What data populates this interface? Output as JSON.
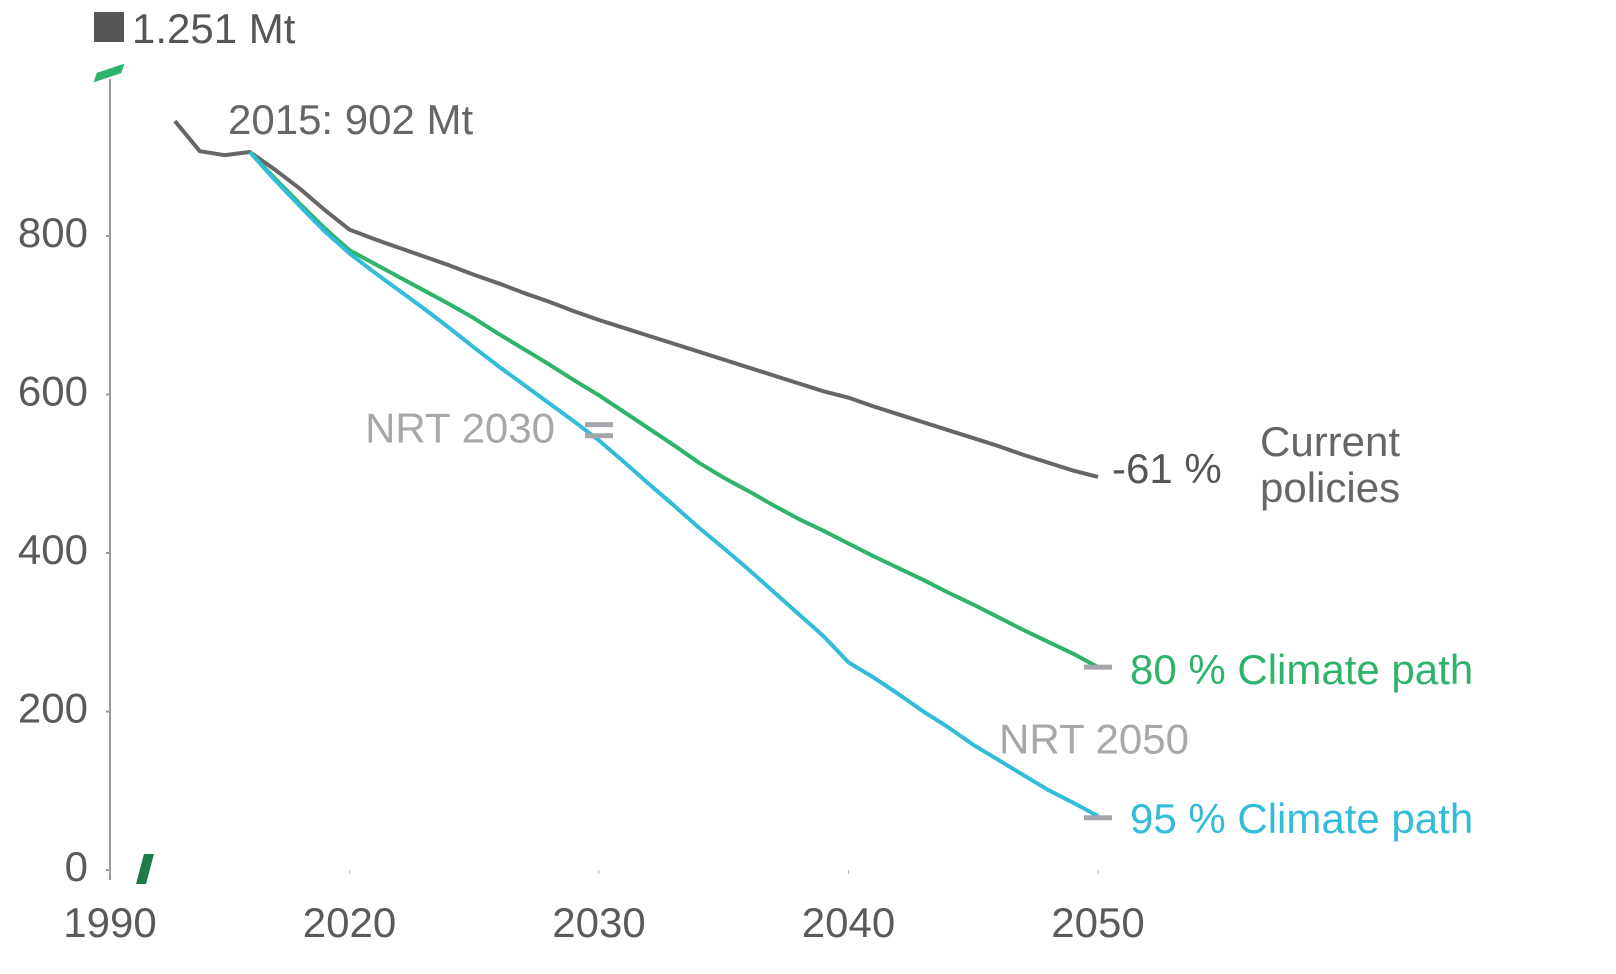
{
  "chart_data": {
    "type": "line",
    "x": [
      2013,
      2014,
      2015,
      2016,
      2017,
      2018,
      2019,
      2020,
      2021,
      2022,
      2023,
      2024,
      2025,
      2026,
      2027,
      2028,
      2029,
      2030,
      2031,
      2032,
      2033,
      2034,
      2035,
      2036,
      2037,
      2038,
      2039,
      2040,
      2041,
      2042,
      2043,
      2044,
      2045,
      2046,
      2047,
      2048,
      2049,
      2050
    ],
    "series": [
      {
        "name": "Current policies",
        "color": "#666666",
        "values": [
          945,
          907,
          902,
          906,
          884,
          860,
          833,
          808,
          796,
          785,
          774,
          763,
          751,
          740,
          728,
          717,
          705,
          694,
          684,
          674,
          664,
          654,
          644,
          634,
          624,
          614,
          604,
          596,
          585,
          575,
          565,
          555,
          545,
          535,
          524,
          514,
          504,
          496
        ]
      },
      {
        "name": "80 % Climate path",
        "color": "#2eb36a",
        "values": [
          null,
          null,
          null,
          906,
          873,
          841,
          810,
          782,
          765,
          748,
          731,
          714,
          696,
          676,
          657,
          638,
          618,
          599,
          578,
          557,
          536,
          514,
          495,
          478,
          460,
          443,
          428,
          412,
          396,
          381,
          366,
          350,
          335,
          319,
          303,
          288,
          273,
          256
        ]
      },
      {
        "name": "95 % Climate path",
        "color": "#33bcd9",
        "values": [
          null,
          null,
          null,
          906,
          871,
          838,
          806,
          778,
          754,
          731,
          708,
          684,
          659,
          635,
          612,
          589,
          566,
          542,
          515,
          487,
          460,
          432,
          406,
          379,
          351,
          323,
          295,
          262,
          243,
          222,
          200,
          180,
          158,
          139,
          120,
          101,
          85,
          68
        ]
      }
    ],
    "xlim": [
      2010.4,
      2050
    ],
    "xticks": [
      1990,
      2020,
      2030,
      2040,
      2050
    ],
    "x_axis_break": true,
    "ylim": [
      0,
      1000
    ],
    "yticks": [
      0,
      200,
      400,
      600,
      800
    ],
    "y_axis_break": true,
    "annotations": {
      "base_1990": "1.251 Mt",
      "start_2015": "2015: 902 Mt",
      "change_current": "-61 %"
    },
    "targets": [
      {
        "label": "NRT 2030",
        "x": 2030,
        "values": [
          562,
          548
        ]
      },
      {
        "label": "NRT 2050",
        "x": 2050,
        "values": [
          256,
          66
        ]
      }
    ]
  }
}
